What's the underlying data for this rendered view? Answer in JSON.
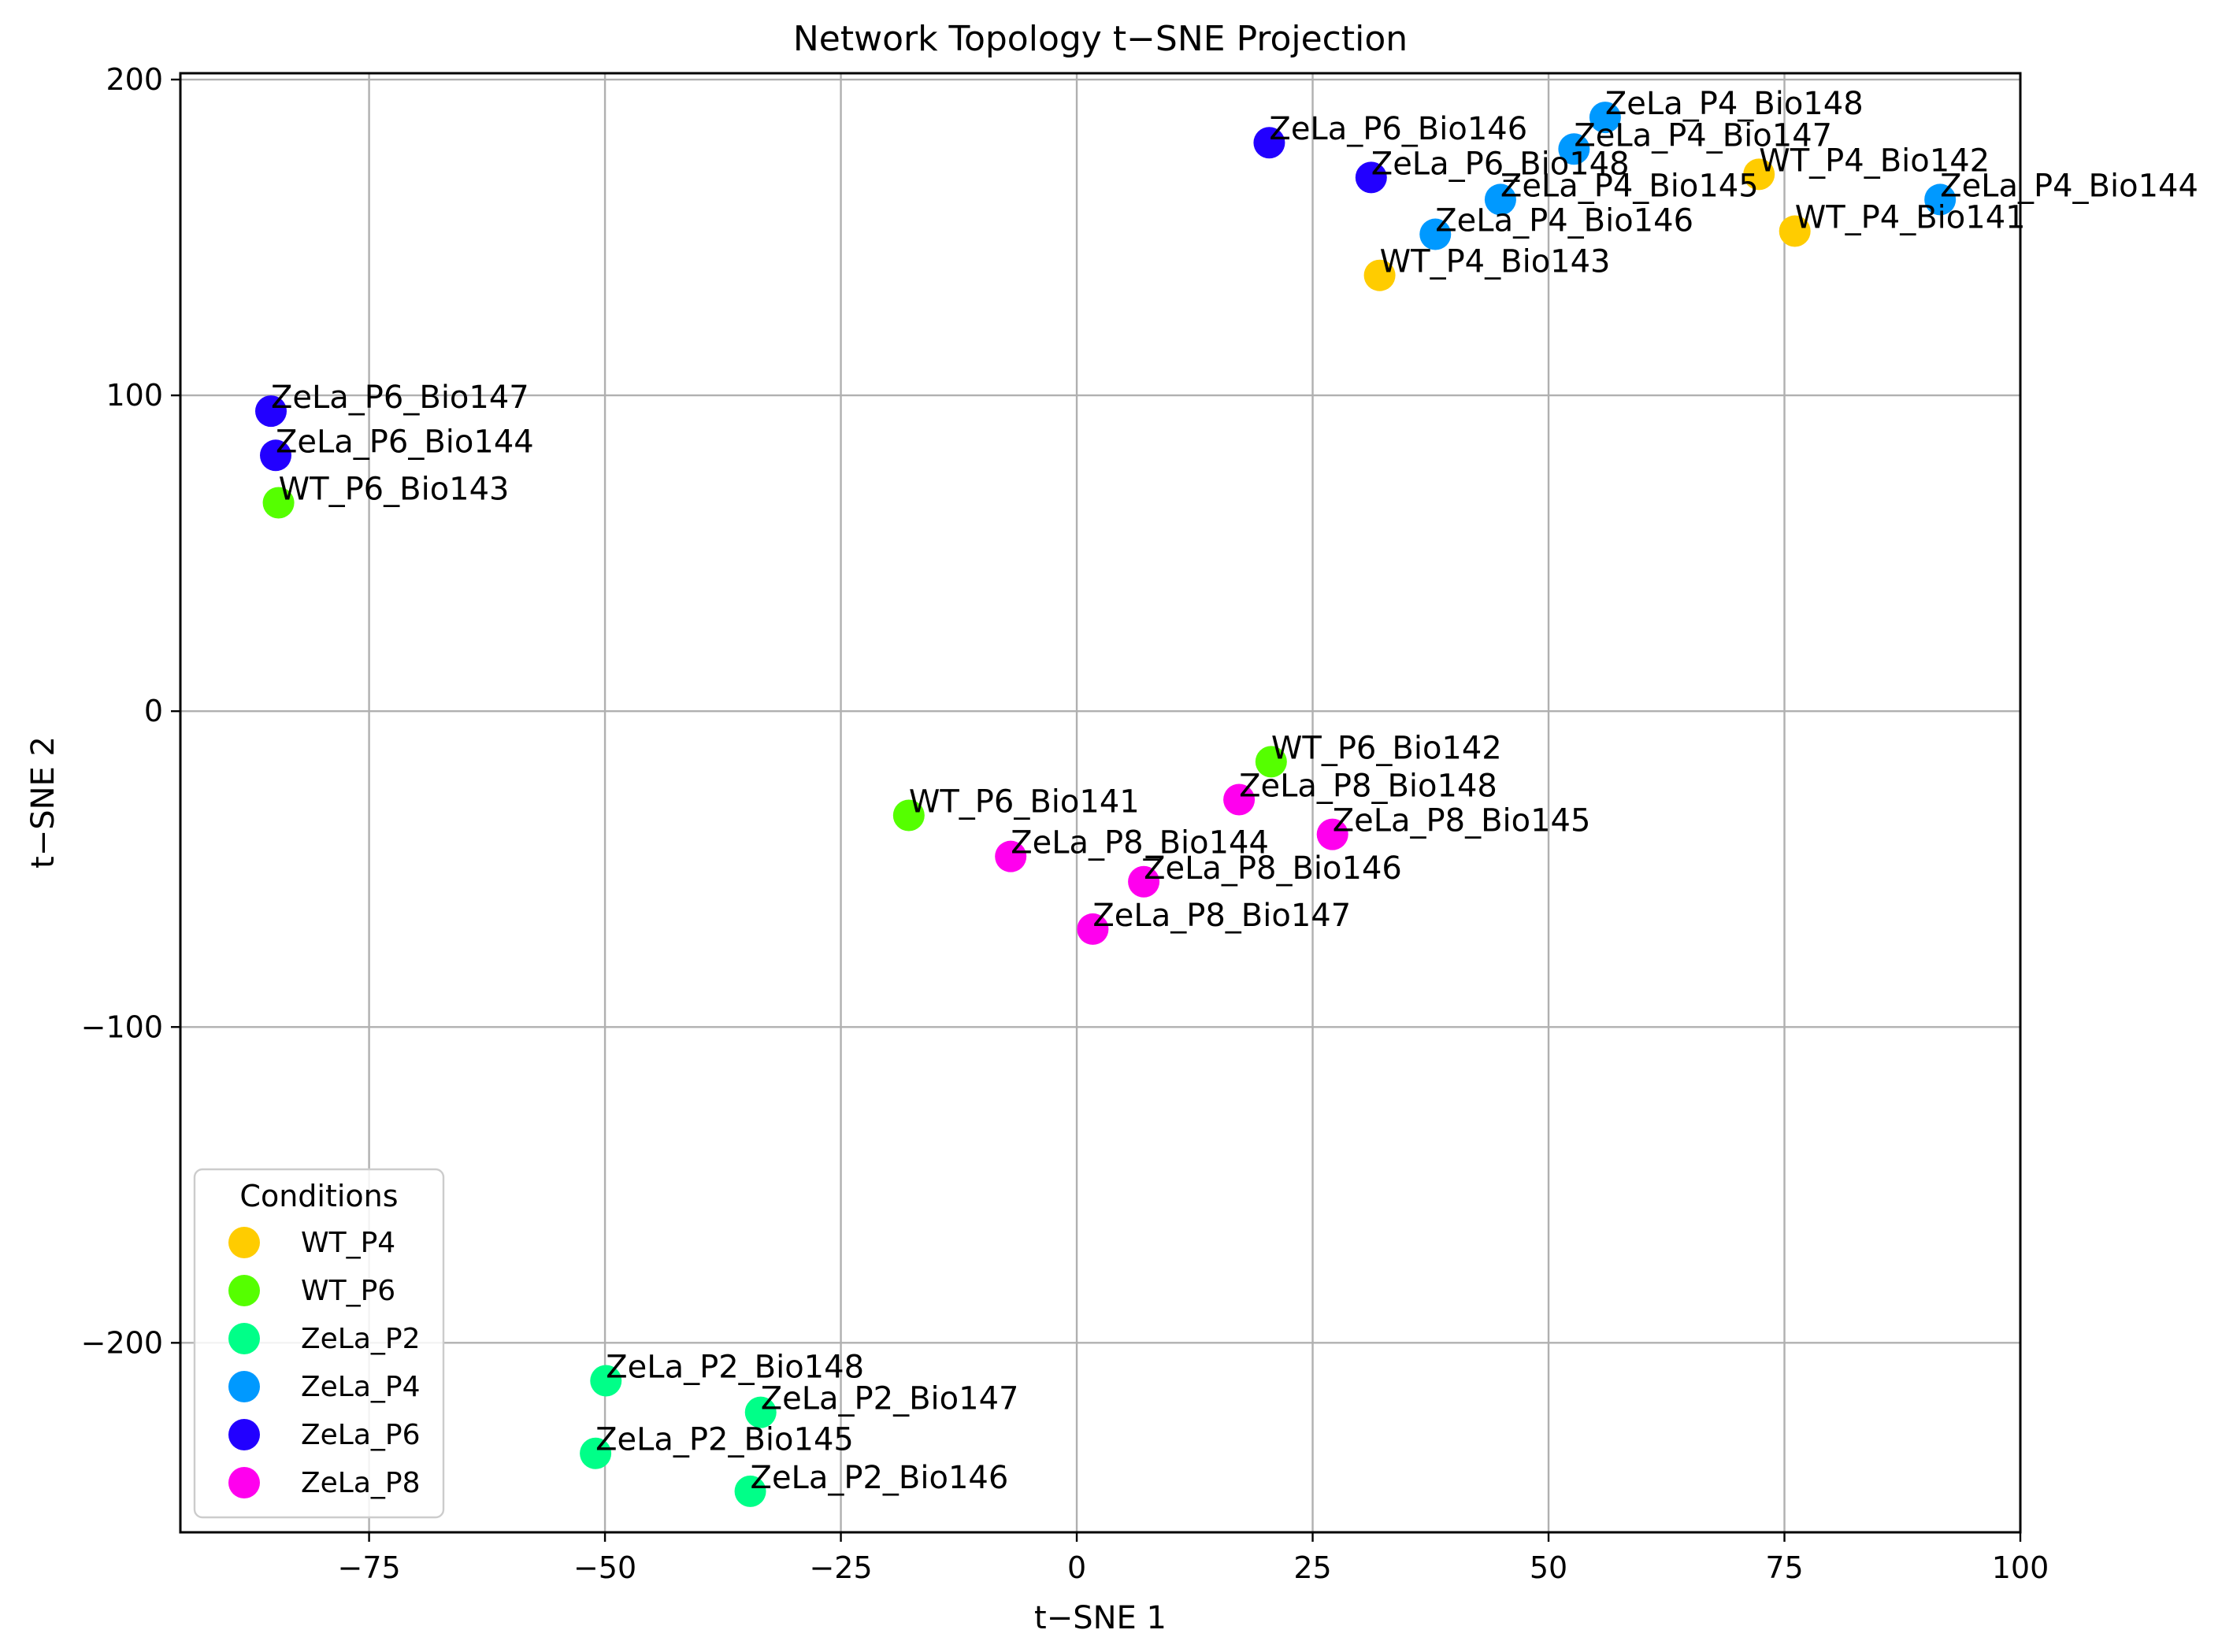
{
  "chart_data": {
    "type": "scatter",
    "title": "Network Topology t−SNE Projection",
    "xlabel": "t−SNE 1",
    "ylabel": "t−SNE 2",
    "xlim": [
      -95,
      100
    ],
    "ylim": [
      -260,
      202
    ],
    "xticks": [
      -75,
      -50,
      -25,
      0,
      25,
      50,
      75,
      100
    ],
    "yticks": [
      -200,
      -100,
      0,
      100,
      200
    ],
    "xtick_labels": [
      "−75",
      "−50",
      "−25",
      "0",
      "25",
      "50",
      "75",
      "100"
    ],
    "ytick_labels": [
      "−200",
      "−100",
      "0",
      "100",
      "200"
    ],
    "grid": true,
    "legend": {
      "title": "Conditions",
      "placement": "lower-left"
    },
    "series": [
      {
        "name": "WT_P4",
        "color": "#ffcc00",
        "points": [
          {
            "label": "WT_P4_Bio142",
            "x": 72.3,
            "y": 170
          },
          {
            "label": "WT_P4_Bio141",
            "x": 76.1,
            "y": 152
          },
          {
            "label": "WT_P4_Bio143",
            "x": 32.1,
            "y": 138
          }
        ]
      },
      {
        "name": "WT_P6",
        "color": "#55ff00",
        "points": [
          {
            "label": "WT_P6_Bio143",
            "x": -84.6,
            "y": 66
          },
          {
            "label": "WT_P6_Bio142",
            "x": 20.6,
            "y": -16
          },
          {
            "label": "WT_P6_Bio141",
            "x": -17.8,
            "y": -33
          }
        ]
      },
      {
        "name": "ZeLa_P2",
        "color": "#00ff88",
        "points": [
          {
            "label": "ZeLa_P2_Bio148",
            "x": -49.9,
            "y": -212
          },
          {
            "label": "ZeLa_P2_Bio147",
            "x": -33.5,
            "y": -222
          },
          {
            "label": "ZeLa_P2_Bio145",
            "x": -51.0,
            "y": -235
          },
          {
            "label": "ZeLa_P2_Bio146",
            "x": -34.6,
            "y": -247
          }
        ]
      },
      {
        "name": "ZeLa_P4",
        "color": "#0099ff",
        "points": [
          {
            "label": "ZeLa_P4_Bio148",
            "x": 56.0,
            "y": 188
          },
          {
            "label": "ZeLa_P4_Bio147",
            "x": 52.7,
            "y": 178
          },
          {
            "label": "ZeLa_P4_Bio145",
            "x": 44.9,
            "y": 162
          },
          {
            "label": "ZeLa_P4_Bio144",
            "x": 91.5,
            "y": 162
          },
          {
            "label": "ZeLa_P4_Bio146",
            "x": 38.0,
            "y": 151
          }
        ]
      },
      {
        "name": "ZeLa_P6",
        "color": "#2200ff",
        "points": [
          {
            "label": "ZeLa_P6_Bio146",
            "x": 20.4,
            "y": 180
          },
          {
            "label": "ZeLa_P6_Bio148",
            "x": 31.2,
            "y": 169
          },
          {
            "label": "ZeLa_P6_Bio147",
            "x": -85.4,
            "y": 95
          },
          {
            "label": "ZeLa_P6_Bio144",
            "x": -84.9,
            "y": 81
          }
        ]
      },
      {
        "name": "ZeLa_P8",
        "color": "#ff00ee",
        "points": [
          {
            "label": "ZeLa_P8_Bio148",
            "x": 17.2,
            "y": -28
          },
          {
            "label": "ZeLa_P8_Bio145",
            "x": 27.1,
            "y": -39
          },
          {
            "label": "ZeLa_P8_Bio144",
            "x": -7.0,
            "y": -46
          },
          {
            "label": "ZeLa_P8_Bio146",
            "x": 7.1,
            "y": -54
          },
          {
            "label": "ZeLa_P8_Bio147",
            "x": 1.7,
            "y": -69
          }
        ]
      }
    ]
  }
}
